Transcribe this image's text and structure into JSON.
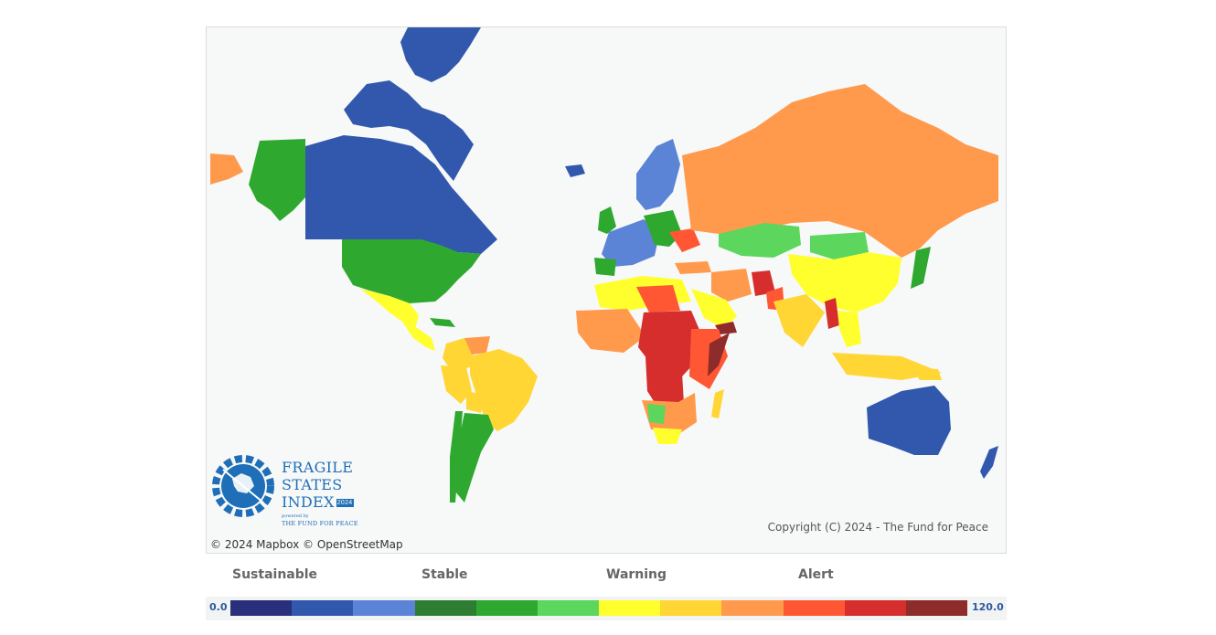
{
  "map": {
    "copyright": "Copyright (C) 2024 - The Fund for Peace",
    "attribution": "© 2024 Mapbox  © OpenStreetMap"
  },
  "logo": {
    "line1": "FRAGILE",
    "line2": "STATES",
    "line3": "INDEX",
    "year": "2024",
    "powered_by": "powered by",
    "org": "THE FUND FOR PEACE",
    "icon": "globe-gear-icon"
  },
  "legend": {
    "categories": [
      "Sustainable",
      "Stable",
      "Warning",
      "Alert"
    ],
    "min": "0.0",
    "max": "120.0",
    "colors": [
      "#2a2f7c",
      "#3158ad",
      "#5b84d6",
      "#2e7d32",
      "#2fa82f",
      "#5cd65c",
      "#ffff2e",
      "#ffd633",
      "#ff9a4d",
      "#ff5733",
      "#d62d2d",
      "#8e2b2b"
    ]
  }
}
